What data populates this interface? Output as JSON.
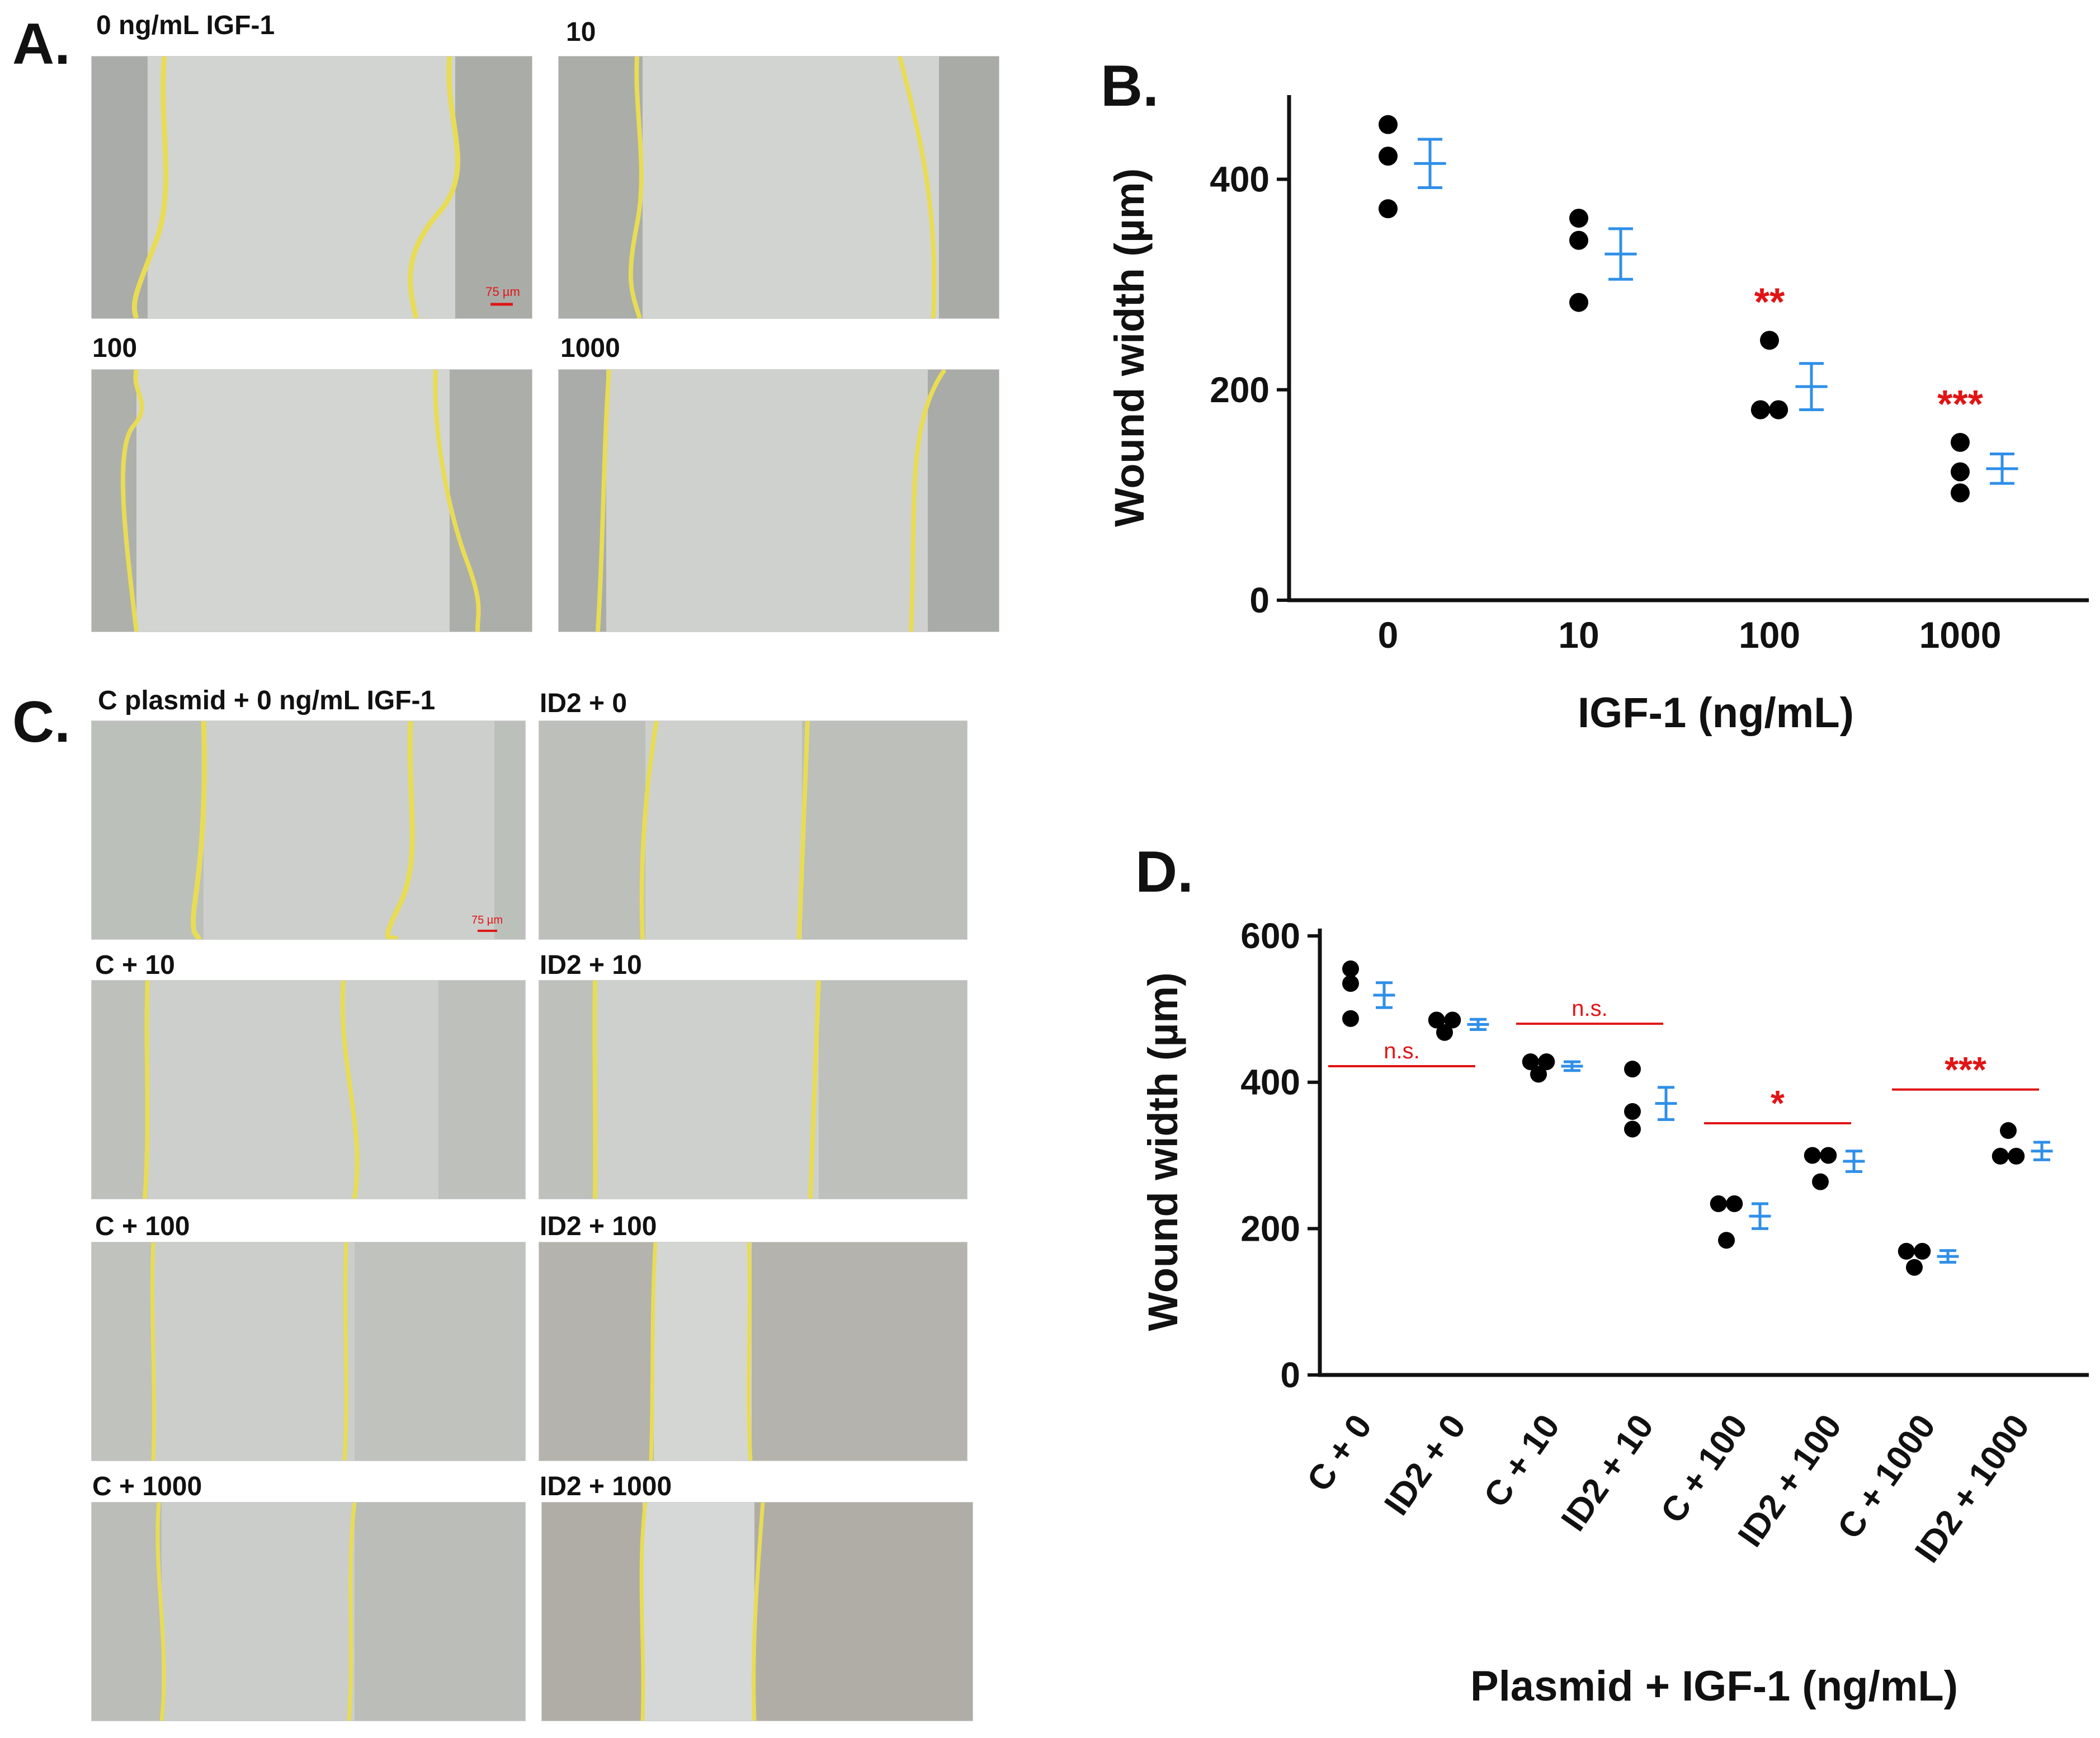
{
  "panels": {
    "A": {
      "letter": "A."
    },
    "B": {
      "letter": "B."
    },
    "C": {
      "letter": "C."
    },
    "D": {
      "letter": "D."
    }
  },
  "colors": {
    "wound_line": "#e8dc55",
    "cells_bg": "#bfc2bd",
    "gap_bg": "#d3d5d2",
    "dot": "#000000",
    "mean_bar": "#2f8fe8",
    "significance": "#e01515",
    "axis": "#111111"
  },
  "panelA": {
    "scale_label": "75 µm",
    "images": [
      {
        "label": "0 ng/mL IGF-1"
      },
      {
        "label": "10"
      },
      {
        "label": "100"
      },
      {
        "label": "1000"
      }
    ]
  },
  "panelC": {
    "scale_label": "75 µm",
    "images": [
      {
        "label": "C plasmid + 0 ng/mL IGF-1"
      },
      {
        "label": "ID2 + 0"
      },
      {
        "label": "C + 10"
      },
      {
        "label": "ID2 + 10"
      },
      {
        "label": "C + 100"
      },
      {
        "label": "ID2 + 100"
      },
      {
        "label": "C + 1000"
      },
      {
        "label": "ID2 + 1000"
      }
    ]
  },
  "chart_data": [
    {
      "id": "B",
      "type": "scatter",
      "title": "",
      "xlabel": "IGF-1 (ng/mL)",
      "ylabel": "Wound width (µm)",
      "ylim": [
        0,
        480
      ],
      "yticks": [
        0,
        200,
        400
      ],
      "categories": [
        "0",
        "10",
        "100",
        "1000"
      ],
      "points": [
        [
          452,
          422,
          372
        ],
        [
          363,
          342,
          283
        ],
        [
          247,
          181,
          181
        ],
        [
          150,
          122,
          102
        ]
      ],
      "mean": [
        415,
        329,
        203,
        125
      ],
      "sem": [
        23,
        24,
        22,
        14
      ],
      "significance": [
        "",
        "",
        "**",
        "***"
      ]
    },
    {
      "id": "D",
      "type": "scatter",
      "title": "",
      "xlabel": "Plasmid + IGF-1 (ng/mL)",
      "ylabel": "Wound width (µm)",
      "ylim": [
        0,
        610
      ],
      "yticks": [
        0,
        200,
        400,
        600
      ],
      "categories": [
        "C + 0",
        "ID2 + 0",
        "C + 10",
        "ID2 + 10",
        "C + 100",
        "ID2 + 100",
        "C + 1000",
        "ID2 + 1000"
      ],
      "points": [
        [
          555,
          535,
          487
        ],
        [
          485,
          485,
          468
        ],
        [
          428,
          428,
          411
        ],
        [
          418,
          360,
          336
        ],
        [
          234,
          234,
          184
        ],
        [
          300,
          300,
          264
        ],
        [
          169,
          169,
          147
        ],
        [
          334,
          299,
          299
        ]
      ],
      "mean": [
        519,
        479,
        422,
        371,
        217,
        292,
        162,
        306
      ],
      "sem": [
        17,
        7,
        6,
        22,
        17,
        14,
        8,
        12
      ],
      "comparisons": [
        {
          "pair": [
            0,
            1
          ],
          "label": "n.s.",
          "y": 422
        },
        {
          "pair": [
            2,
            3
          ],
          "label": "n.s.",
          "y": 480
        },
        {
          "pair": [
            4,
            5
          ],
          "label": "*",
          "y": 344
        },
        {
          "pair": [
            6,
            7
          ],
          "label": "***",
          "y": 390
        }
      ]
    }
  ]
}
